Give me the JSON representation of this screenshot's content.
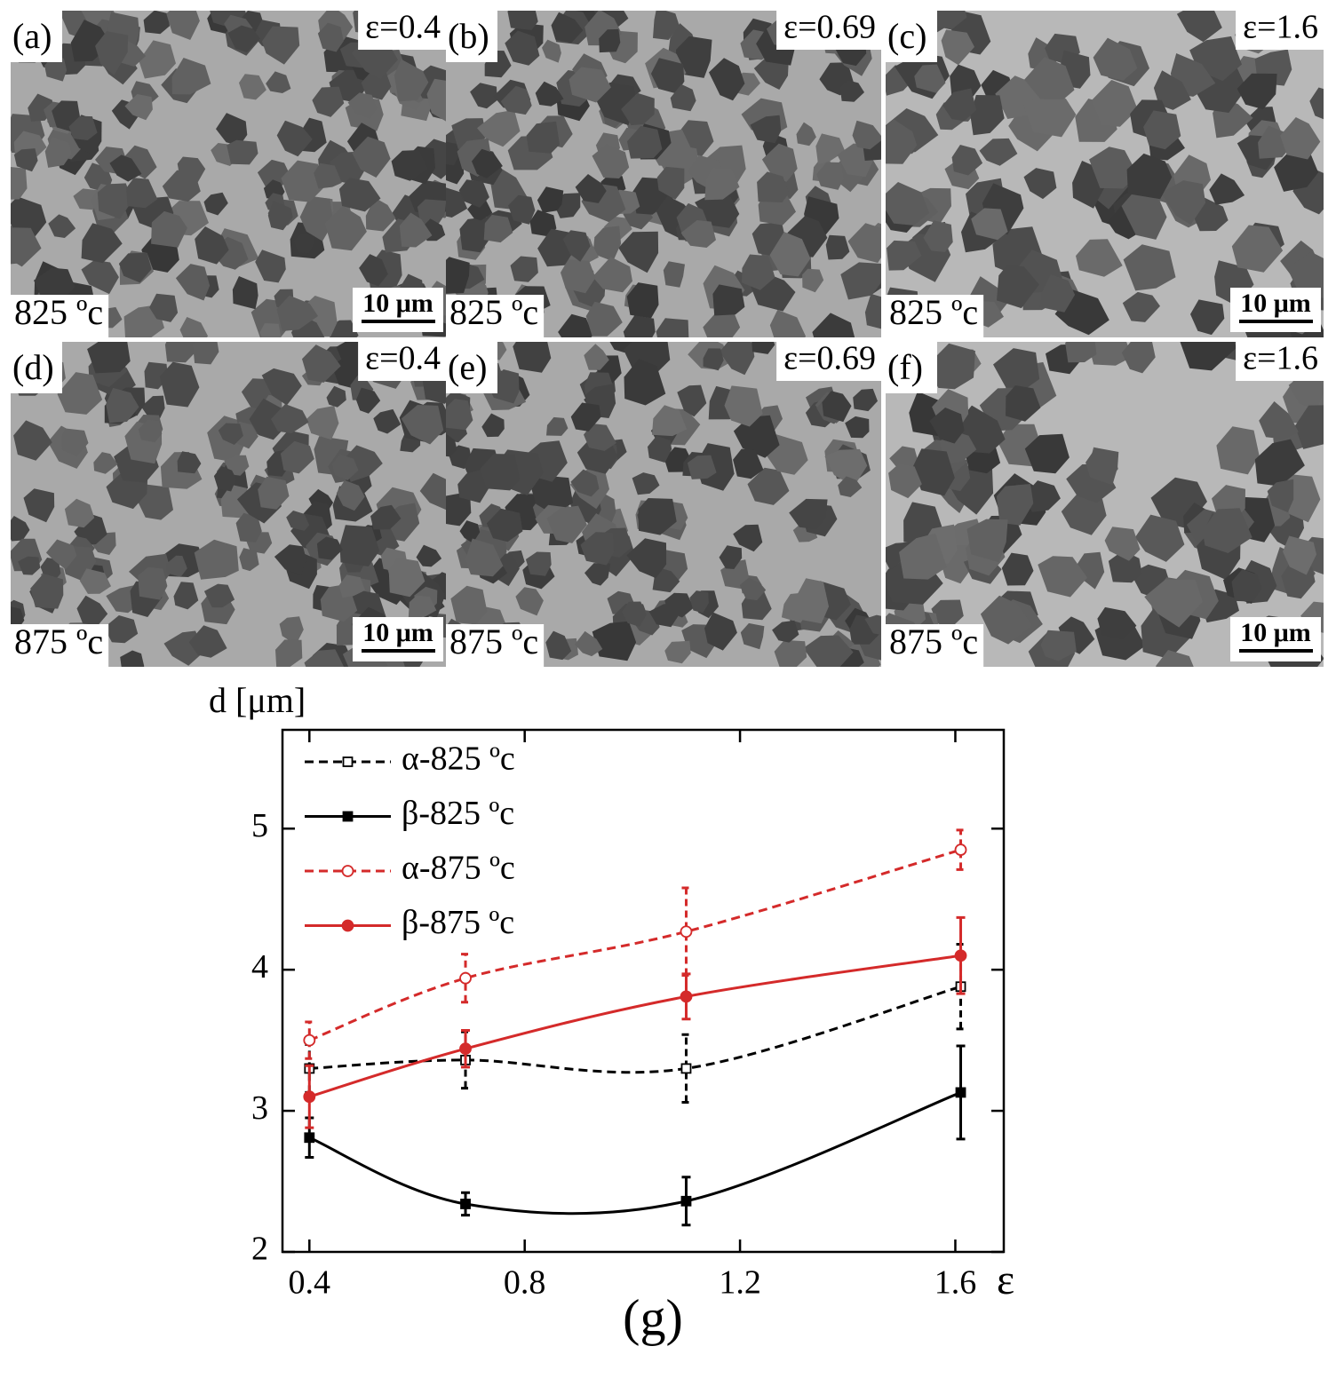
{
  "panels": [
    {
      "label": "(a)",
      "strain": "ε=0.4",
      "temperature": "825 ºc",
      "scale": "10 μm"
    },
    {
      "label": "(b)",
      "strain": "ε=0.69",
      "temperature": "825 ºc"
    },
    {
      "label": "(c)",
      "strain": "ε=1.6",
      "temperature": "825 ºc",
      "scale": "10 μm"
    },
    {
      "label": "(d)",
      "strain": "ε=0.4",
      "temperature": "875 ºc",
      "scale": "10 μm"
    },
    {
      "label": "(e)",
      "strain": "ε=0.69",
      "temperature": "875 ºc"
    },
    {
      "label": "(f)",
      "strain": "ε=1.6",
      "temperature": "875 ºc",
      "scale": "10 μm"
    }
  ],
  "chart_data": {
    "type": "line",
    "caption": "(g)",
    "y_label": "d [μm]",
    "x_label": "ε",
    "x": [
      0.4,
      0.69,
      1.1,
      1.61
    ],
    "xlim": [
      0.35,
      1.69
    ],
    "xticks": [
      0.4,
      0.8,
      1.2,
      1.6
    ],
    "ylim": [
      2,
      5.7
    ],
    "yticks": [
      2,
      3,
      4,
      5
    ],
    "legend": "upper left",
    "series": [
      {
        "name": "α-825 ºc",
        "color": "#000000",
        "dashed": true,
        "marker": "open-square",
        "values": [
          3.3,
          3.36,
          3.3,
          3.88
        ],
        "errors": [
          0.17,
          0.2,
          0.24,
          0.3
        ]
      },
      {
        "name": "β-825 ºc",
        "color": "#000000",
        "dashed": false,
        "marker": "filled-square",
        "values": [
          2.81,
          2.34,
          2.36,
          3.13
        ],
        "errors": [
          0.14,
          0.08,
          0.17,
          0.33
        ]
      },
      {
        "name": "α-875 ºc",
        "color": "#d42a2a",
        "dashed": true,
        "marker": "open-circle",
        "values": [
          3.5,
          3.94,
          4.27,
          4.85
        ],
        "errors": [
          0.13,
          0.17,
          0.31,
          0.14
        ]
      },
      {
        "name": "β-875 ºc",
        "color": "#d42a2a",
        "dashed": false,
        "marker": "filled-circle",
        "values": [
          3.1,
          3.44,
          3.81,
          4.1
        ],
        "errors": [
          0.22,
          0.13,
          0.16,
          0.27
        ]
      }
    ]
  }
}
